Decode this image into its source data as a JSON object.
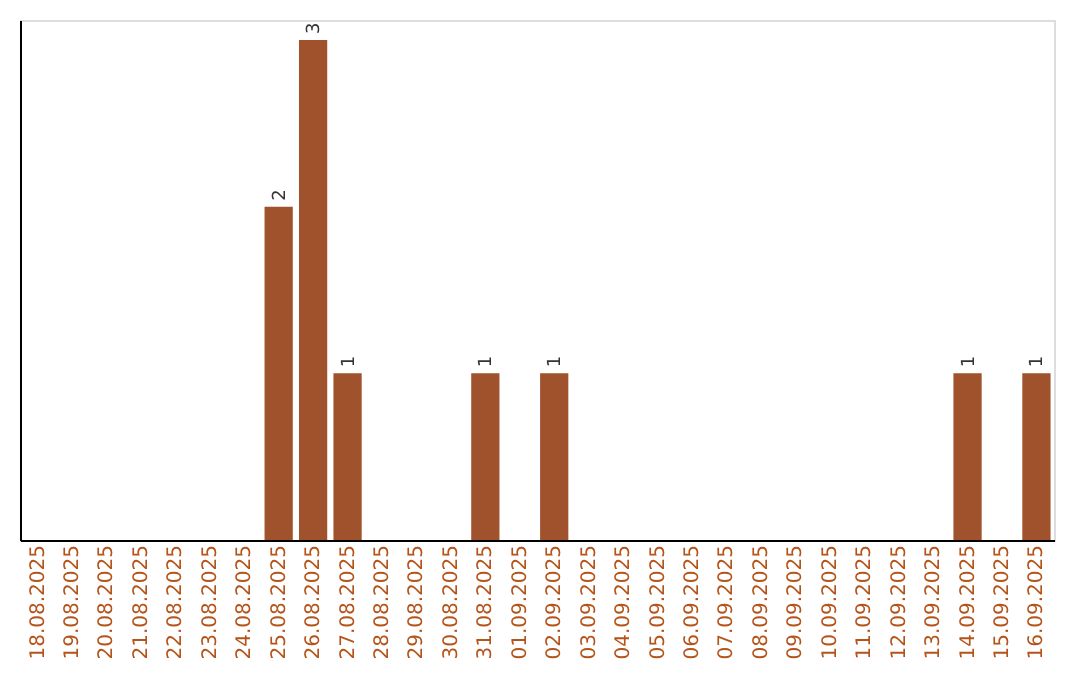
{
  "chart_data": {
    "type": "bar",
    "categories": [
      "18.08.2025",
      "19.08.2025",
      "20.08.2025",
      "21.08.2025",
      "22.08.2025",
      "23.08.2025",
      "24.08.2025",
      "25.08.2025",
      "26.08.2025",
      "27.08.2025",
      "28.08.2025",
      "29.08.2025",
      "30.08.2025",
      "31.08.2025",
      "01.09.2025",
      "02.09.2025",
      "03.09.2025",
      "04.09.2025",
      "05.09.2025",
      "06.09.2025",
      "07.09.2025",
      "08.09.2025",
      "09.09.2025",
      "10.09.2025",
      "11.09.2025",
      "12.09.2025",
      "13.09.2025",
      "14.09.2025",
      "15.09.2025",
      "16.09.2025"
    ],
    "values": [
      0,
      0,
      0,
      0,
      0,
      0,
      0,
      2,
      3,
      1,
      0,
      0,
      0,
      1,
      0,
      1,
      0,
      0,
      0,
      0,
      0,
      0,
      0,
      0,
      0,
      0,
      0,
      1,
      0,
      1
    ],
    "value_labels": [
      null,
      null,
      null,
      null,
      null,
      null,
      null,
      "2",
      "3",
      "1",
      null,
      null,
      null,
      "1",
      null,
      "1",
      null,
      null,
      null,
      null,
      null,
      null,
      null,
      null,
      null,
      null,
      null,
      "1",
      null,
      "1"
    ],
    "color": "#a0522d",
    "ylim": [
      0,
      3.12
    ],
    "tick_labels": "x",
    "grid": false
  }
}
